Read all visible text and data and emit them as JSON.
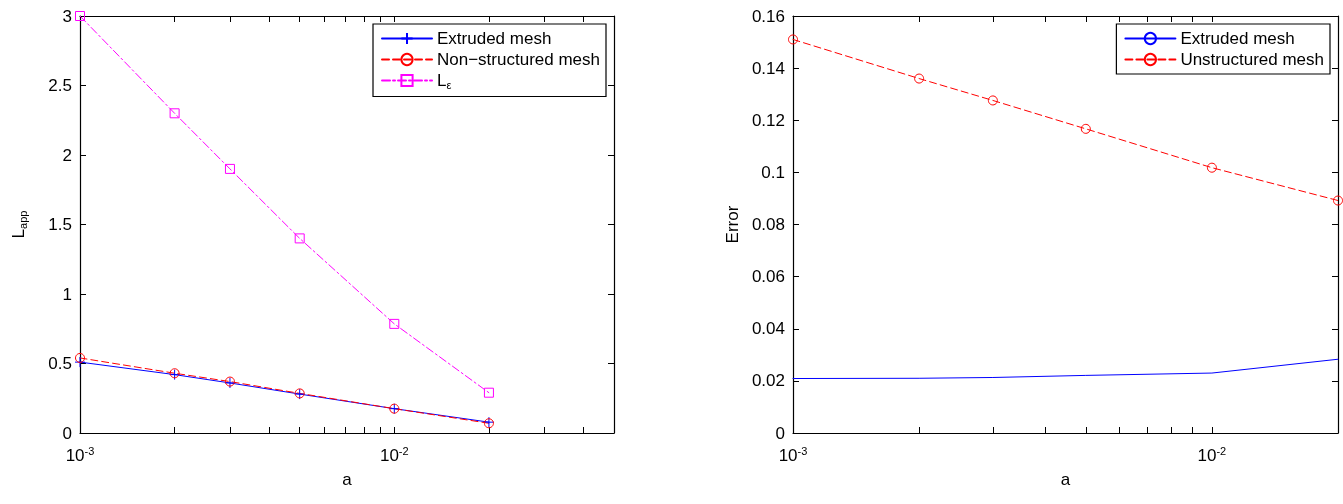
{
  "chart_data": [
    {
      "type": "line",
      "xlabel": "a",
      "ylabel": "L$_{app}$",
      "log": "x",
      "grid": false,
      "legend": "top right",
      "xlim": [
        0.001,
        0.05
      ],
      "xticks": [
        {
          "value": 0.001,
          "label": "10$^{-3}$"
        },
        {
          "value": 0.002,
          "label": null
        },
        {
          "value": 0.003,
          "label": null
        },
        {
          "value": 0.004,
          "label": null
        },
        {
          "value": 0.005,
          "label": null
        },
        {
          "value": 0.006,
          "label": null
        },
        {
          "value": 0.007,
          "label": null
        },
        {
          "value": 0.008,
          "label": null
        },
        {
          "value": 0.009,
          "label": null
        },
        {
          "value": 0.01,
          "label": "10$^{-2}$"
        },
        {
          "value": 0.02,
          "label": null
        },
        {
          "value": 0.03,
          "label": null
        },
        {
          "value": 0.04,
          "label": null
        }
      ],
      "ylim": [
        0,
        3
      ],
      "yticks": [
        0,
        0.5,
        1,
        1.5,
        2,
        2.5,
        3
      ],
      "x": [
        0.001,
        0.002,
        0.003,
        0.005,
        0.01,
        0.02
      ],
      "series": [
        {
          "name": "Extruded mesh",
          "color": "#0000ff",
          "marker": "cross",
          "line_style": "solid",
          "values": [
            0.51,
            0.42,
            0.36,
            0.28,
            0.175,
            0.078
          ]
        },
        {
          "name": "Non−structured mesh",
          "color": "#ff0000",
          "marker": "circle",
          "line_style": "dashed",
          "values": [
            0.54,
            0.43,
            0.37,
            0.285,
            0.175,
            0.07
          ]
        },
        {
          "name": "L$_{ε}$",
          "color": "#ff00ff",
          "marker": "square",
          "line_style": "dashdot",
          "values": [
            3.0,
            2.3,
            1.9,
            1.4,
            0.785,
            0.29
          ]
        }
      ]
    },
    {
      "type": "line",
      "xlabel": "a",
      "ylabel": "Error",
      "log": "x",
      "grid": false,
      "legend": "top right",
      "xlim": [
        0.001,
        0.02
      ],
      "xticks": [
        {
          "value": 0.001,
          "label": "10$^{-3}$"
        },
        {
          "value": 0.002,
          "label": null
        },
        {
          "value": 0.003,
          "label": null
        },
        {
          "value": 0.004,
          "label": null
        },
        {
          "value": 0.005,
          "label": null
        },
        {
          "value": 0.006,
          "label": null
        },
        {
          "value": 0.007,
          "label": null
        },
        {
          "value": 0.008,
          "label": null
        },
        {
          "value": 0.009,
          "label": null
        },
        {
          "value": 0.01,
          "label": "10$^{-2}$"
        },
        {
          "value": 0.02,
          "label": null
        }
      ],
      "ylim": [
        0,
        0.16
      ],
      "yticks": [
        0,
        0.02,
        0.04,
        0.06,
        0.08,
        0.1,
        0.12,
        0.14,
        0.16
      ],
      "x": [
        0.001,
        0.002,
        0.003,
        0.005,
        0.01,
        0.02
      ],
      "series": [
        {
          "name": "Extruded mesh",
          "color": "#0000ff",
          "marker": "none",
          "line_style": "solid",
          "values": [
            0.0209,
            0.021,
            0.0213,
            0.0221,
            0.023,
            0.0283
          ]
        },
        {
          "name": "Unstructured mesh",
          "color": "#ff0000",
          "marker": "circle",
          "line_style": "dashed",
          "values": [
            0.151,
            0.136,
            0.1276,
            0.1167,
            0.1018,
            0.0892
          ]
        }
      ]
    }
  ]
}
